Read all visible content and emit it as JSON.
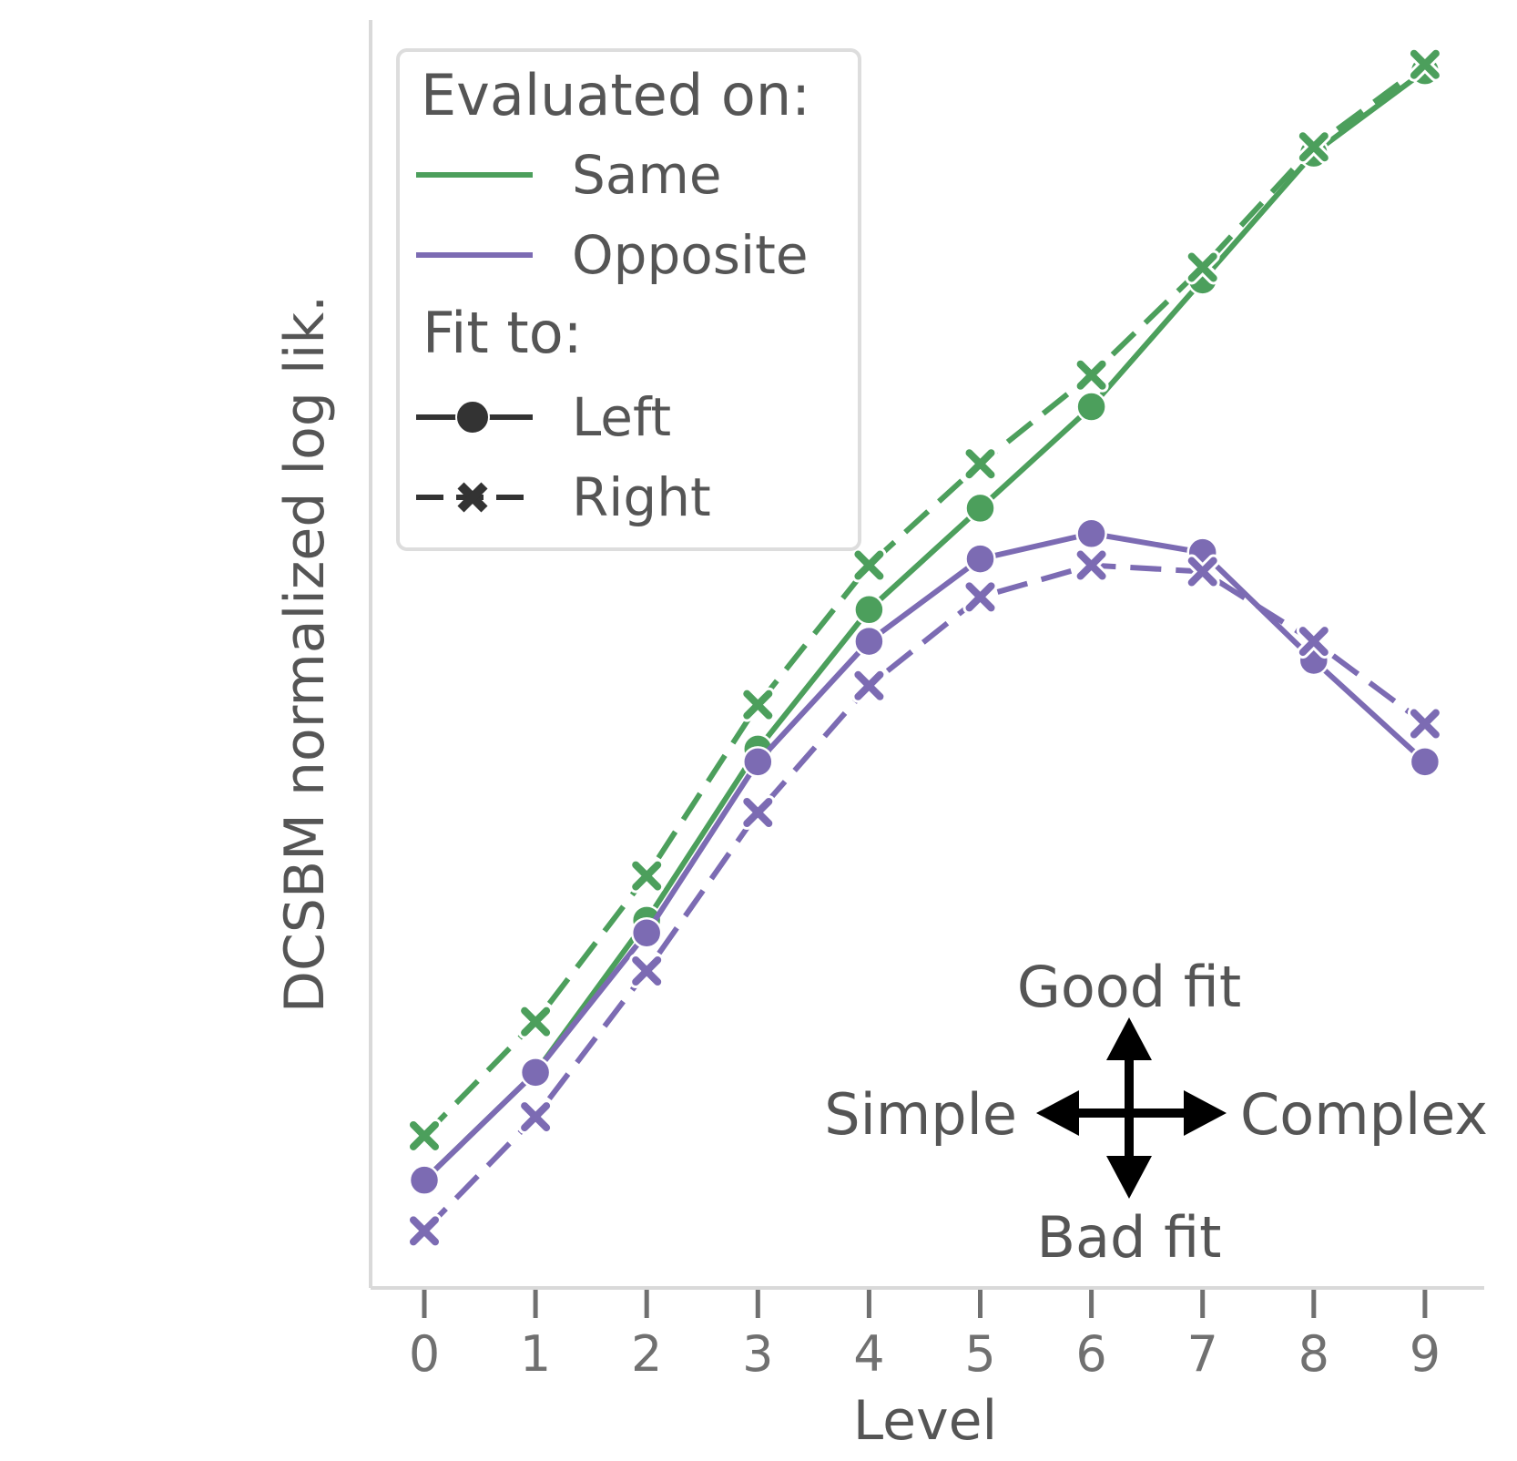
{
  "chart_data": {
    "type": "line",
    "title": "",
    "xlabel": "Level",
    "ylabel": "DCSBM normalized log lik.",
    "x": [
      0,
      1,
      2,
      3,
      4,
      5,
      6,
      7,
      8,
      9
    ],
    "xticks": [
      "0",
      "1",
      "2",
      "3",
      "4",
      "5",
      "6",
      "7",
      "8",
      "9"
    ],
    "y_tick_labels_shown": false,
    "ylim": [
      0,
      100
    ],
    "grid": false,
    "legend": {
      "placement": "top-left",
      "groups": [
        {
          "title": "Evaluated on:",
          "entries": [
            {
              "label": "Same",
              "color": "#4c9f5c",
              "style": "solid"
            },
            {
              "label": "Opposite",
              "color": "#7c6bb3",
              "style": "solid"
            }
          ]
        },
        {
          "title": "Fit to:",
          "entries": [
            {
              "label": "Left",
              "color": "#333333",
              "style": "solid",
              "marker": "circle"
            },
            {
              "label": "Right",
              "color": "#333333",
              "style": "dashed",
              "marker": "x"
            }
          ]
        }
      ]
    },
    "series": [
      {
        "evaluated_on": "Same",
        "fit_to": "Left",
        "color": "#4c9f5c",
        "dash": "solid",
        "marker": "circle",
        "values": [
          8.5,
          17,
          29,
          42.5,
          53.5,
          61.5,
          69.5,
          79.5,
          89.5,
          96
        ]
      },
      {
        "evaluated_on": "Same",
        "fit_to": "Right",
        "color": "#4c9f5c",
        "dash": "dashed",
        "marker": "x",
        "values": [
          12,
          21,
          32.5,
          46,
          57,
          65,
          72,
          80.5,
          90,
          96.5
        ]
      },
      {
        "evaluated_on": "Opposite",
        "fit_to": "Left",
        "color": "#7c6bb3",
        "dash": "solid",
        "marker": "circle",
        "values": [
          8.5,
          17,
          28,
          41.5,
          51,
          57.5,
          59.5,
          58,
          49.5,
          41.5
        ]
      },
      {
        "evaluated_on": "Opposite",
        "fit_to": "Right",
        "color": "#7c6bb3",
        "dash": "dashed",
        "marker": "x",
        "values": [
          4.5,
          13.5,
          25,
          37.5,
          47.5,
          54.5,
          57,
          56.5,
          51,
          44.5
        ]
      }
    ],
    "annotations": {
      "good": "Good fit",
      "bad": "Bad fit",
      "simple": "Simple",
      "complex": "Complex"
    }
  }
}
